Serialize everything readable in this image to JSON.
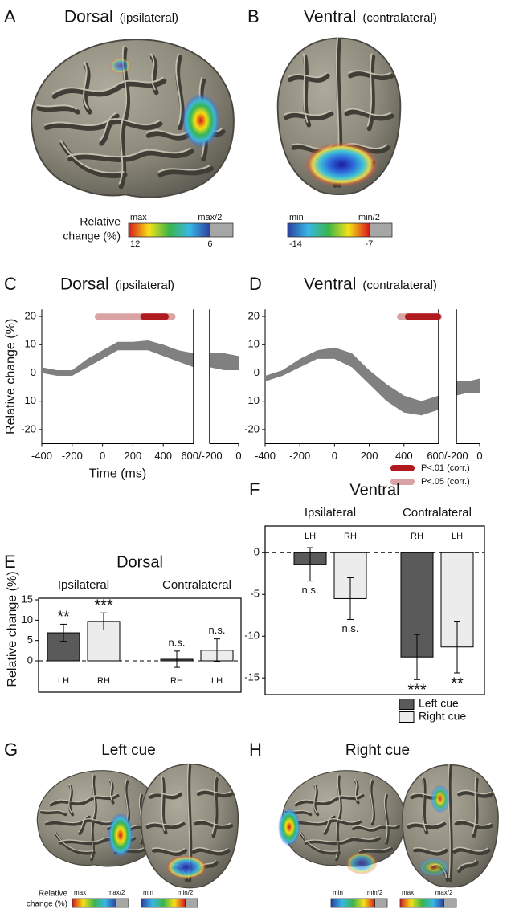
{
  "figure": {
    "brain_panels": [
      {
        "label": "A",
        "title": "Dorsal",
        "subtitle": "(ipsilateral)",
        "colorbar": {
          "caption": [
            "Relative",
            "change (%)"
          ],
          "top_labels": [
            "max",
            "max/2"
          ],
          "bottom_labels": [
            12,
            6
          ],
          "scale": "hot"
        }
      },
      {
        "label": "B",
        "title": "Ventral",
        "subtitle": "(contralateral)",
        "colorbar": {
          "top_labels": [
            "min",
            "min/2"
          ],
          "bottom_labels": [
            -14,
            -7
          ],
          "scale": "cold"
        }
      }
    ],
    "cue_panels": [
      {
        "label": "G",
        "title": "Left cue",
        "colorbar_caption": [
          "Relative",
          "change (%)"
        ],
        "colorbars": [
          {
            "top_labels": [
              "max",
              "max/2"
            ],
            "scale": "hot"
          },
          {
            "top_labels": [
              "min",
              "min/2"
            ],
            "scale": "cold"
          }
        ]
      },
      {
        "label": "H",
        "title": "Right cue",
        "colorbars": [
          {
            "top_labels": [
              "min",
              "min/2"
            ],
            "scale": "cold"
          },
          {
            "top_labels": [
              "max",
              "max/2"
            ],
            "scale": "hot"
          }
        ]
      }
    ]
  },
  "chart_data": [
    {
      "type": "band",
      "panel_label": "C",
      "title": "Dorsal",
      "subtitle": "(ipsilateral)",
      "y_label": "Relative change (%)",
      "x_label": "Time (ms)",
      "color": "#808080",
      "zero_line": true,
      "ylim": [
        -25,
        22.5
      ],
      "yticks": [
        -20,
        -10,
        0,
        10,
        20
      ],
      "boundary_label": "600/-200",
      "segments": [
        {
          "xlim": [
            -400,
            600
          ],
          "xticks": [
            -400,
            -200,
            0,
            200,
            400
          ],
          "x": [
            -400,
            -300,
            -200,
            -100,
            0,
            100,
            200,
            300,
            400,
            500,
            600
          ],
          "lower": [
            0,
            -1,
            -1,
            2,
            5,
            8,
            8,
            8,
            6,
            4,
            2
          ],
          "upper": [
            2,
            1,
            1,
            5,
            8,
            11,
            11,
            11.5,
            10,
            8,
            7
          ]
        },
        {
          "xlim": [
            -200,
            0
          ],
          "xticks": [
            0
          ],
          "x": [
            -200,
            -100,
            0
          ],
          "lower": [
            2,
            1,
            1
          ],
          "upper": [
            7,
            7,
            6
          ]
        }
      ],
      "significance": [
        {
          "color": "#d9a3a3",
          "start": -30,
          "end": 460
        },
        {
          "color": "#b0191e",
          "start": 270,
          "end": 415
        }
      ]
    },
    {
      "type": "band",
      "panel_label": "D",
      "title": "Ventral",
      "subtitle": "(contralateral)",
      "color": "#808080",
      "zero_line": true,
      "ylim": [
        -25,
        22.5
      ],
      "yticks": [
        -20,
        -10,
        0,
        10,
        20
      ],
      "boundary_label": "600/-200",
      "segments": [
        {
          "xlim": [
            -400,
            600
          ],
          "xticks": [
            -400,
            -200,
            0,
            200,
            400
          ],
          "x": [
            -400,
            -300,
            -200,
            -100,
            0,
            100,
            200,
            300,
            400,
            500,
            600
          ],
          "lower": [
            -3,
            -1,
            2,
            5,
            5,
            2,
            -4,
            -10,
            -14,
            -15,
            -13
          ],
          "upper": [
            -1,
            1,
            5,
            8,
            9,
            7,
            1,
            -4,
            -8,
            -10,
            -8
          ]
        },
        {
          "xlim": [
            -200,
            0
          ],
          "xticks": [
            0
          ],
          "x": [
            -200,
            -100,
            0
          ],
          "lower": [
            -8,
            -7,
            -7
          ],
          "upper": [
            -3,
            -3,
            -2
          ]
        }
      ],
      "significance": [
        {
          "color": "#d9a3a3",
          "start": 378,
          "end": 600
        },
        {
          "color": "#b0191e",
          "start": 424,
          "end": 595
        }
      ],
      "legend": [
        {
          "label": "P<.01 (corr.)",
          "color": "#b0191e"
        },
        {
          "label": "P<.05 (corr.)",
          "color": "#d9a3a3"
        }
      ]
    },
    {
      "type": "grouped_bar",
      "panel_label": "E",
      "title": "Dorsal",
      "y_label": "Relative change (%)",
      "groups": [
        "Ipsilateral",
        "Contralateral"
      ],
      "zero_line": true,
      "ylim": [
        -7.7,
        15.4
      ],
      "yticks": [
        0,
        5,
        10,
        15
      ],
      "hemisphere_label_position": "bottom",
      "series": [
        {
          "color": "#5a5a5a",
          "hemispheres": [
            "LH",
            "RH"
          ],
          "values": [
            6.9,
            0.4
          ],
          "errors": [
            2.1,
            2.0
          ],
          "significance": [
            "**",
            "n.s."
          ]
        },
        {
          "color": "#ececec",
          "hemispheres": [
            "RH",
            "LH"
          ],
          "values": [
            9.7,
            2.6
          ],
          "errors": [
            2.1,
            2.8
          ],
          "significance": [
            "***",
            "n.s."
          ]
        }
      ]
    },
    {
      "type": "grouped_bar",
      "panel_label": "F",
      "title": "Ventral",
      "groups": [
        "Ipsilateral",
        "Contralateral"
      ],
      "zero_line": true,
      "ylim": [
        -17,
        3.2
      ],
      "yticks": [
        -15,
        -10,
        -5,
        0
      ],
      "hemisphere_label_position": "top",
      "series": [
        {
          "name": "Left cue",
          "color": "#5a5a5a",
          "hemispheres": [
            "LH",
            "RH"
          ],
          "values": [
            -1.4,
            -12.5
          ],
          "errors": [
            2.0,
            2.7
          ],
          "significance": [
            "n.s.",
            "***"
          ]
        },
        {
          "name": "Right cue",
          "color": "#ececec",
          "hemispheres": [
            "RH",
            "LH"
          ],
          "values": [
            -5.5,
            -11.3
          ],
          "errors": [
            2.5,
            3.1
          ],
          "significance": [
            "n.s.",
            "**"
          ]
        }
      ]
    }
  ]
}
